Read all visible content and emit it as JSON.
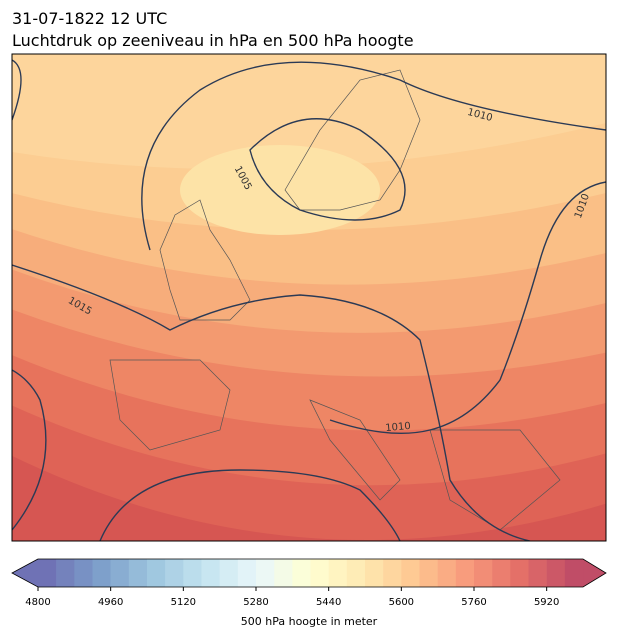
{
  "header": {
    "date": "31-07-1822 12 UTC",
    "title": "Luchtdruk op zeeniveau in hPa en 500 hPa hoogte"
  },
  "contour_labels": [
    1010,
    1005,
    1015,
    1010,
    1010
  ],
  "colorbar": {
    "levels": [
      4800,
      4840,
      4880,
      4920,
      4960,
      5000,
      5040,
      5080,
      5120,
      5160,
      5200,
      5240,
      5280,
      5320,
      5360,
      5400,
      5440,
      5480,
      5520,
      5560,
      5600,
      5640,
      5680,
      5720,
      5760,
      5800,
      5840,
      5880,
      5920,
      5960,
      6000
    ],
    "ticks": [
      4800,
      4960,
      5120,
      5280,
      5440,
      5600,
      5760,
      5920
    ],
    "label": "500 hPa hoogte in meter"
  }
}
